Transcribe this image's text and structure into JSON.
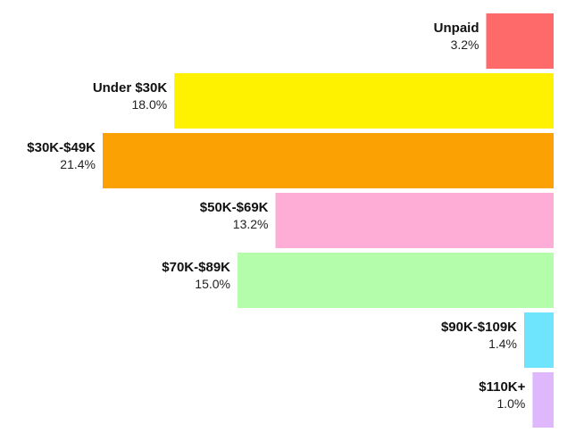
{
  "chart_data": {
    "type": "bar",
    "orientation": "horizontal",
    "alignment": "right",
    "categories": [
      "Unpaid",
      "Under $30K",
      "$30K-$49K",
      "$50K-$69K",
      "$70K-$89K",
      "$90K-$109K",
      "$110K+"
    ],
    "values": [
      3.2,
      18.0,
      21.4,
      13.2,
      15.0,
      1.4,
      1.0
    ],
    "value_labels": [
      "3.2%",
      "18.0%",
      "21.4%",
      "13.2%",
      "15.0%",
      "1.4%",
      "1.0%"
    ],
    "colors": [
      "#fe6a6a",
      "#fff200",
      "#fca103",
      "#fdadd6",
      "#b4fdab",
      "#6ee4fd",
      "#deb7fc"
    ],
    "title": "",
    "xlabel": "",
    "ylabel": "",
    "grid": false,
    "legend": "none"
  }
}
